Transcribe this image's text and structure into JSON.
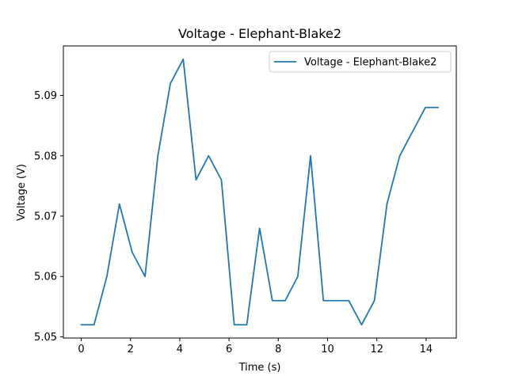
{
  "chart_data": {
    "type": "line",
    "title": "Voltage - Elephant-Blake2",
    "xlabel": "Time (s)",
    "ylabel": "Voltage (V)",
    "xlim": [
      -0.725,
      15.225
    ],
    "ylim": [
      5.0498,
      5.0982
    ],
    "xticks": [
      0,
      2,
      4,
      6,
      8,
      10,
      12,
      14
    ],
    "xtick_labels": [
      "0",
      "2",
      "4",
      "6",
      "8",
      "10",
      "12",
      "14"
    ],
    "yticks": [
      5.05,
      5.06,
      5.07,
      5.08,
      5.09
    ],
    "ytick_labels": [
      "5.05",
      "5.06",
      "5.07",
      "5.08",
      "5.09"
    ],
    "grid": false,
    "legend_position": "top-right",
    "series": [
      {
        "name": "Voltage - Elephant-Blake2",
        "color": "#1f77b4",
        "x": [
          0.0,
          0.52,
          1.04,
          1.55,
          2.07,
          2.59,
          3.11,
          3.62,
          4.14,
          4.66,
          5.17,
          5.69,
          6.21,
          6.72,
          7.24,
          7.76,
          8.28,
          8.79,
          9.31,
          9.83,
          10.34,
          10.86,
          11.38,
          11.9,
          12.41,
          12.93,
          13.45,
          13.97,
          14.48
        ],
        "y": [
          5.052,
          5.052,
          5.06,
          5.072,
          5.064,
          5.06,
          5.08,
          5.092,
          5.096,
          5.076,
          5.08,
          5.076,
          5.052,
          5.052,
          5.068,
          5.056,
          5.056,
          5.06,
          5.08,
          5.056,
          5.056,
          5.056,
          5.052,
          5.056,
          5.072,
          5.08,
          5.084,
          5.088,
          5.088
        ]
      }
    ]
  }
}
